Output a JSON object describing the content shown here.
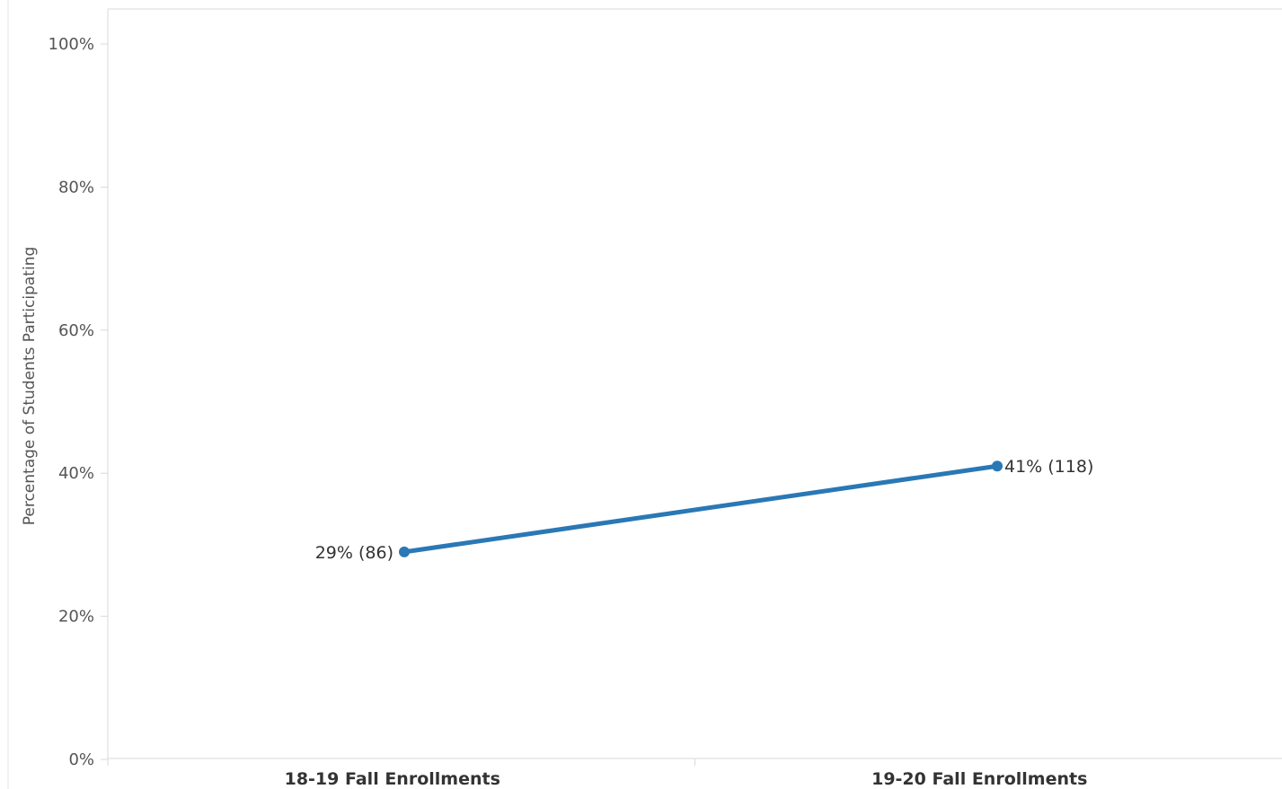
{
  "chart_data": {
    "type": "line",
    "categories": [
      "18-19 Fall Enrollments",
      "19-20 Fall Enrollments"
    ],
    "series": [
      {
        "values": [
          29,
          41
        ],
        "counts": [
          86,
          118
        ],
        "data_labels": [
          "29% (86)",
          "41% (118)"
        ]
      }
    ],
    "ylabel": "Percentage of Students Participating",
    "xlabel": "",
    "ylim": [
      0,
      100
    ],
    "yticks": [
      0,
      20,
      40,
      60,
      80,
      100
    ],
    "ytick_labels": [
      "0%",
      "20%",
      "40%",
      "60%",
      "80%",
      "100%"
    ],
    "grid": false,
    "colors": {
      "line": "#2a78b5",
      "axis": "#d9d9d9"
    }
  }
}
